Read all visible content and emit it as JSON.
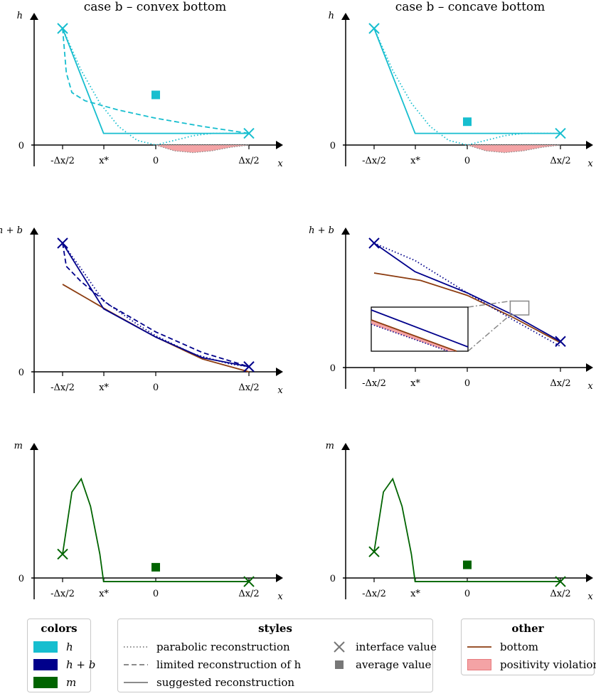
{
  "chart_data": [
    {
      "type": "line",
      "title": "case b – convex bottom",
      "ylabel": "h",
      "xlabel": "x",
      "x_ticks": [
        "-Δx/2",
        "x*",
        "0",
        "Δx/2"
      ],
      "y_ticks": [
        "0"
      ],
      "xlim": [
        -0.55,
        1.37
      ],
      "ylim": [
        -0.18,
        1.1
      ],
      "series": [
        {
          "name": "h parabolic reconstruction",
          "color": "#17becf",
          "style": "dotted",
          "x": [
            -0.5,
            -0.4,
            -0.3,
            -0.2,
            -0.1,
            0,
            0.1,
            0.2,
            0.3,
            0.4,
            0.5
          ],
          "y": [
            1.0,
            0.64,
            0.36,
            0.16,
            0.04,
            0,
            0.04,
            0.08,
            0.1,
            0.1,
            0.1
          ]
        },
        {
          "name": "h limited reconstruction",
          "color": "#17becf",
          "style": "dashed",
          "x": [
            -0.5,
            -0.48,
            -0.45,
            -0.38,
            -0.2,
            0,
            0.25,
            0.5
          ],
          "y": [
            1.0,
            0.62,
            0.45,
            0.38,
            0.3,
            0.23,
            0.16,
            0.1
          ]
        },
        {
          "name": "h suggested reconstruction",
          "color": "#17becf",
          "style": "solid",
          "x": [
            -0.5,
            -0.28,
            0.5
          ],
          "y": [
            1.0,
            0.1,
            0.1
          ]
        },
        {
          "name": "bottom positivity violation",
          "color": "#f4a3a5",
          "style": "area",
          "x": [
            0,
            0.1,
            0.2,
            0.3,
            0.4,
            0.5
          ],
          "y": [
            0,
            -0.05,
            -0.065,
            -0.05,
            -0.02,
            0
          ]
        }
      ],
      "markers": [
        {
          "kind": "interface",
          "x": -0.5,
          "y": 1.0,
          "color": "#17becf"
        },
        {
          "kind": "interface",
          "x": 0.5,
          "y": 0.1,
          "color": "#17becf"
        },
        {
          "kind": "average",
          "x": 0,
          "y": 0.43,
          "color": "#17becf"
        }
      ]
    },
    {
      "type": "line",
      "title": "case b – concave bottom",
      "ylabel": "h",
      "xlabel": "x",
      "x_ticks": [
        "-Δx/2",
        "x*",
        "0",
        "Δx/2"
      ],
      "y_ticks": [
        "0"
      ],
      "xlim": [
        -0.55,
        1.37
      ],
      "ylim": [
        -0.18,
        1.1
      ],
      "series": [
        {
          "name": "h parabolic reconstruction",
          "color": "#17becf",
          "style": "dotted",
          "x": [
            -0.5,
            -0.4,
            -0.3,
            -0.2,
            -0.1,
            0,
            0.1,
            0.2,
            0.3,
            0.4,
            0.5
          ],
          "y": [
            1.0,
            0.64,
            0.36,
            0.16,
            0.04,
            0,
            0.04,
            0.08,
            0.1,
            0.1,
            0.1
          ]
        },
        {
          "name": "h suggested reconstruction",
          "color": "#17becf",
          "style": "solid",
          "x": [
            -0.5,
            -0.28,
            0.5
          ],
          "y": [
            1.0,
            0.1,
            0.1
          ]
        },
        {
          "name": "bottom positivity violation",
          "color": "#f4a3a5",
          "style": "area",
          "x": [
            0,
            0.1,
            0.2,
            0.3,
            0.4,
            0.5
          ],
          "y": [
            0,
            -0.05,
            -0.065,
            -0.05,
            -0.02,
            0
          ]
        }
      ],
      "markers": [
        {
          "kind": "interface",
          "x": -0.5,
          "y": 1.0,
          "color": "#17becf"
        },
        {
          "kind": "interface",
          "x": 0.5,
          "y": 0.1,
          "color": "#17becf"
        },
        {
          "kind": "average",
          "x": 0,
          "y": 0.2,
          "color": "#17becf"
        }
      ]
    },
    {
      "type": "line",
      "title": "",
      "ylabel": "h + b",
      "xlabel": "x",
      "x_ticks": [
        "-Δx/2",
        "x*",
        "0",
        "Δx/2"
      ],
      "y_ticks": [
        "0"
      ],
      "xlim": [
        -0.55,
        1.37
      ],
      "ylim": [
        -0.05,
        1.1
      ],
      "series": [
        {
          "name": "bottom",
          "color": "#8c3c10",
          "style": "solid",
          "x": [
            -0.5,
            -0.25,
            0,
            0.25,
            0.5
          ],
          "y": [
            0.68,
            0.47,
            0.27,
            0.1,
            0.0
          ]
        },
        {
          "name": "h + b parabolic reconstruction",
          "color": "#00008b",
          "style": "dotted",
          "x": [
            -0.5,
            -0.4,
            -0.28,
            -0.1,
            0,
            0.2,
            0.4,
            0.5
          ],
          "y": [
            1.0,
            0.8,
            0.55,
            0.37,
            0.28,
            0.14,
            0.06,
            0.04
          ]
        },
        {
          "name": "h + b limited reconstruction",
          "color": "#00008b",
          "style": "dashed",
          "x": [
            -0.5,
            -0.48,
            -0.4,
            -0.25,
            0,
            0.25,
            0.5
          ],
          "y": [
            1.0,
            0.82,
            0.7,
            0.52,
            0.31,
            0.15,
            0.04
          ]
        },
        {
          "name": "h + b suggested reconstruction",
          "color": "#00008b",
          "style": "solid",
          "x": [
            -0.5,
            -0.28,
            0,
            0.25,
            0.5
          ],
          "y": [
            1.0,
            0.49,
            0.27,
            0.11,
            0.04
          ]
        }
      ],
      "markers": [
        {
          "kind": "interface",
          "x": -0.5,
          "y": 1.0,
          "color": "#00008b"
        },
        {
          "kind": "interface",
          "x": 0.5,
          "y": 0.04,
          "color": "#00008b"
        }
      ]
    },
    {
      "type": "line",
      "title": "",
      "ylabel": "h + b",
      "xlabel": "x",
      "x_ticks": [
        "-Δx/2",
        "x*",
        "0",
        "Δx/2"
      ],
      "y_ticks": [
        "0"
      ],
      "xlim": [
        -0.55,
        1.37
      ],
      "ylim": [
        -0.05,
        1.1
      ],
      "series": [
        {
          "name": "bottom",
          "color": "#8c3c10",
          "style": "solid",
          "x": [
            -0.5,
            -0.25,
            0,
            0.25,
            0.5
          ],
          "y": [
            0.76,
            0.7,
            0.58,
            0.4,
            0.2
          ]
        },
        {
          "name": "h + b parabolic reconstruction",
          "color": "#00008b",
          "style": "dotted",
          "x": [
            -0.5,
            -0.28,
            0,
            0.25,
            0.5
          ],
          "y": [
            1.0,
            0.86,
            0.6,
            0.38,
            0.17
          ]
        },
        {
          "name": "h + b suggested reconstruction",
          "color": "#00008b",
          "style": "solid",
          "x": [
            -0.5,
            -0.28,
            0,
            0.25,
            0.5
          ],
          "y": [
            1.0,
            0.77,
            0.6,
            0.42,
            0.21
          ]
        }
      ],
      "markers": [
        {
          "kind": "interface",
          "x": -0.5,
          "y": 1.0,
          "color": "#00008b"
        },
        {
          "kind": "interface",
          "x": 0.5,
          "y": 0.21,
          "color": "#00008b"
        }
      ],
      "inset": {
        "zoom_x": [
          0.2,
          0.3
        ],
        "zoom_y": [
          0.4,
          0.5
        ]
      }
    },
    {
      "type": "line",
      "title": "",
      "ylabel": "m",
      "xlabel": "x",
      "x_ticks": [
        "-Δx/2",
        "x*",
        "0",
        "Δx/2"
      ],
      "y_ticks": [
        "0"
      ],
      "xlim": [
        -0.55,
        1.37
      ],
      "ylim": [
        -0.12,
        1.1
      ],
      "series": [
        {
          "name": "m suggested reconstruction",
          "color": "#006400",
          "style": "solid",
          "x": [
            -0.5,
            -0.45,
            -0.4,
            -0.35,
            -0.3,
            -0.28,
            0,
            0.5
          ],
          "y": [
            0.2,
            0.72,
            0.83,
            0.6,
            0.2,
            -0.03,
            -0.03,
            -0.03
          ]
        }
      ],
      "markers": [
        {
          "kind": "interface",
          "x": -0.5,
          "y": 0.2,
          "color": "#006400"
        },
        {
          "kind": "interface",
          "x": 0.5,
          "y": -0.03,
          "color": "#006400"
        },
        {
          "kind": "average",
          "x": 0,
          "y": 0.09,
          "color": "#006400"
        }
      ]
    },
    {
      "type": "line",
      "title": "",
      "ylabel": "m",
      "xlabel": "x",
      "x_ticks": [
        "-Δx/2",
        "x*",
        "0",
        "Δx/2"
      ],
      "y_ticks": [
        "0"
      ],
      "xlim": [
        -0.55,
        1.37
      ],
      "ylim": [
        -0.12,
        1.1
      ],
      "series": [
        {
          "name": "m suggested reconstruction",
          "color": "#006400",
          "style": "solid",
          "x": [
            -0.5,
            -0.45,
            -0.4,
            -0.35,
            -0.3,
            -0.28,
            0,
            0.5
          ],
          "y": [
            0.22,
            0.72,
            0.83,
            0.6,
            0.2,
            -0.03,
            -0.03,
            -0.03
          ]
        }
      ],
      "markers": [
        {
          "kind": "interface",
          "x": -0.5,
          "y": 0.22,
          "color": "#006400"
        },
        {
          "kind": "interface",
          "x": 0.5,
          "y": -0.03,
          "color": "#006400"
        },
        {
          "kind": "average",
          "x": 0,
          "y": 0.11,
          "color": "#006400"
        }
      ]
    }
  ],
  "legend": {
    "colors": {
      "title": "colors",
      "items": [
        {
          "label": "h",
          "color": "#17becf"
        },
        {
          "label": "h + b",
          "color": "#00008b"
        },
        {
          "label": "m",
          "color": "#006400"
        }
      ]
    },
    "styles": {
      "title": "styles",
      "items": [
        {
          "label": "parabolic reconstruction",
          "style": "dotted"
        },
        {
          "label": "limited reconstruction of h",
          "style": "dashed"
        },
        {
          "label": "suggested reconstruction",
          "style": "solid"
        },
        {
          "label": "interface value",
          "style": "cross"
        },
        {
          "label": "average value",
          "style": "square"
        }
      ]
    },
    "other": {
      "title": "other",
      "items": [
        {
          "label": "bottom",
          "color": "#8c3c10"
        },
        {
          "label": "positivity violation",
          "color": "#f4a3a5"
        }
      ]
    }
  }
}
